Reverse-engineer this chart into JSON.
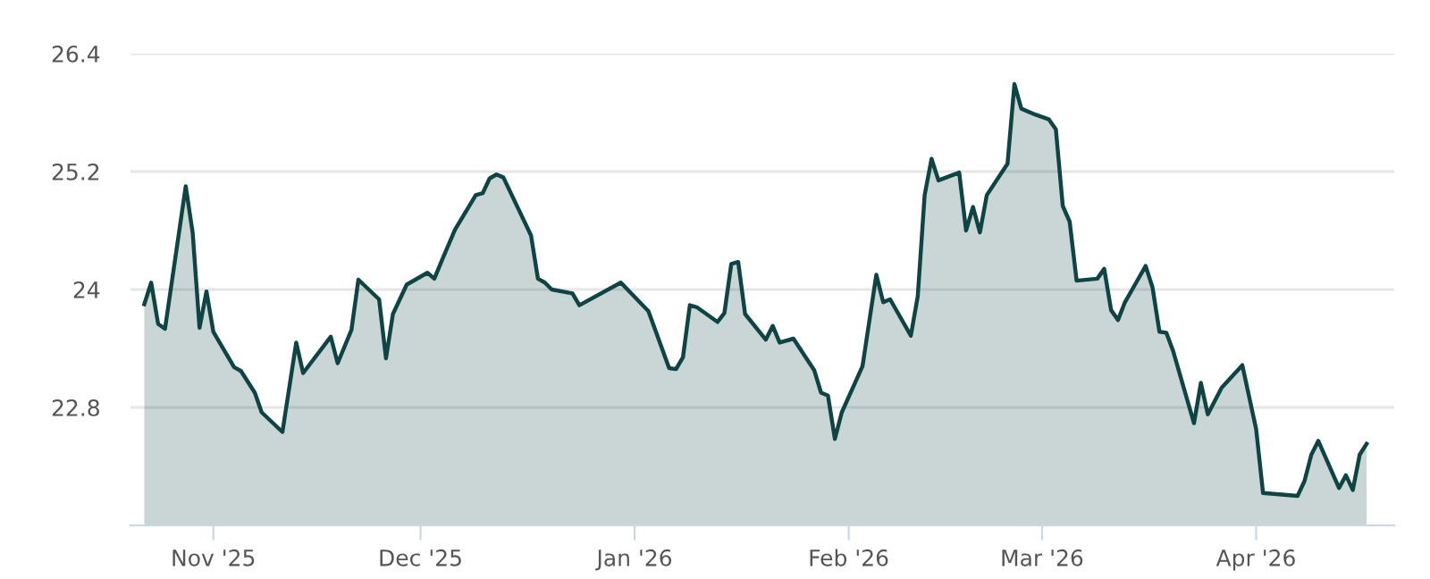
{
  "chart_data": {
    "type": "area",
    "x": [
      "2025-10-22",
      "2025-10-23",
      "2025-10-24",
      "2025-10-25",
      "2025-10-28",
      "2025-10-29",
      "2025-10-30",
      "2025-10-31",
      "2025-11-01",
      "2025-11-04",
      "2025-11-05",
      "2025-11-07",
      "2025-11-08",
      "2025-11-11",
      "2025-11-13",
      "2025-11-14",
      "2025-11-18",
      "2025-11-19",
      "2025-11-21",
      "2025-11-22",
      "2025-11-25",
      "2025-11-26",
      "2025-11-27",
      "2025-11-29",
      "2025-12-02",
      "2025-12-03",
      "2025-12-04",
      "2025-12-06",
      "2025-12-09",
      "2025-12-10",
      "2025-12-11",
      "2025-12-12",
      "2025-12-13",
      "2025-12-17",
      "2025-12-18",
      "2025-12-19",
      "2025-12-20",
      "2025-12-23",
      "2025-12-24",
      "2025-12-30",
      "2026-01-03",
      "2026-01-06",
      "2026-01-07",
      "2026-01-08",
      "2026-01-09",
      "2026-01-10",
      "2026-01-13",
      "2026-01-14",
      "2026-01-15",
      "2026-01-16",
      "2026-01-17",
      "2026-01-20",
      "2026-01-21",
      "2026-01-22",
      "2026-01-24",
      "2026-01-27",
      "2026-01-28",
      "2026-01-29",
      "2026-01-30",
      "2026-01-31",
      "2026-02-03",
      "2026-02-05",
      "2026-02-06",
      "2026-02-07",
      "2026-02-10",
      "2026-02-11",
      "2026-02-12",
      "2026-02-13",
      "2026-02-14",
      "2026-02-17",
      "2026-02-18",
      "2026-02-19",
      "2026-02-20",
      "2026-02-21",
      "2026-02-24",
      "2026-02-25",
      "2026-02-26",
      "2026-02-28",
      "2026-03-02",
      "2026-03-03",
      "2026-03-04",
      "2026-03-05",
      "2026-03-06",
      "2026-03-09",
      "2026-03-10",
      "2026-03-11",
      "2026-03-12",
      "2026-03-13",
      "2026-03-16",
      "2026-03-17",
      "2026-03-18",
      "2026-03-19",
      "2026-03-20",
      "2026-03-23",
      "2026-03-24",
      "2026-03-25",
      "2026-03-27",
      "2026-03-30",
      "2026-04-01",
      "2026-04-02",
      "2026-04-07",
      "2026-04-08",
      "2026-04-09",
      "2026-04-10",
      "2026-04-13",
      "2026-04-14",
      "2026-04-15",
      "2026-04-16",
      "2026-04-17"
    ],
    "series": [
      {
        "color": "#0f4444",
        "values": [
          23.85,
          24.07,
          23.65,
          23.6,
          25.05,
          24.58,
          23.61,
          23.98,
          23.57,
          23.21,
          23.17,
          22.95,
          22.75,
          22.55,
          23.46,
          23.15,
          23.52,
          23.25,
          23.59,
          24.1,
          23.9,
          23.3,
          23.75,
          24.05,
          24.17,
          24.11,
          24.28,
          24.61,
          24.96,
          24.98,
          25.13,
          25.17,
          25.14,
          24.55,
          24.11,
          24.07,
          24.0,
          23.96,
          23.84,
          24.07,
          23.78,
          23.2,
          23.19,
          23.31,
          23.84,
          23.82,
          23.67,
          23.76,
          24.26,
          24.28,
          23.75,
          23.49,
          23.63,
          23.46,
          23.5,
          23.18,
          22.95,
          22.92,
          22.48,
          22.75,
          23.22,
          24.15,
          23.87,
          23.9,
          23.53,
          23.93,
          24.96,
          25.33,
          25.11,
          25.19,
          24.6,
          24.84,
          24.58,
          24.96,
          25.28,
          26.09,
          25.84,
          25.78,
          25.73,
          25.63,
          24.85,
          24.69,
          24.09,
          24.11,
          24.21,
          23.79,
          23.69,
          23.87,
          24.24,
          24.02,
          23.57,
          23.56,
          23.37,
          22.64,
          23.05,
          22.73,
          23.0,
          23.23,
          22.58,
          21.93,
          21.9,
          22.05,
          22.32,
          22.46,
          21.98,
          22.11,
          21.96,
          22.32,
          22.43
        ]
      }
    ],
    "xlim": [
      "2025-10-20",
      "2026-04-21"
    ],
    "xticks": [
      {
        "value": "2025-11-01",
        "label": "Nov '25"
      },
      {
        "value": "2025-12-01",
        "label": "Dec '25"
      },
      {
        "value": "2026-01-01",
        "label": "Jan '26"
      },
      {
        "value": "2026-02-01",
        "label": "Feb '26"
      },
      {
        "value": "2026-03-01",
        "label": "Mar '26"
      },
      {
        "value": "2026-04-01",
        "label": "Apr '26"
      }
    ],
    "ylim": [
      21.6,
      26.4
    ],
    "yticks": [
      22.8,
      24,
      25.2,
      26.4
    ],
    "grid": "y",
    "legend": false,
    "line_style": "solid",
    "marker": "none"
  }
}
